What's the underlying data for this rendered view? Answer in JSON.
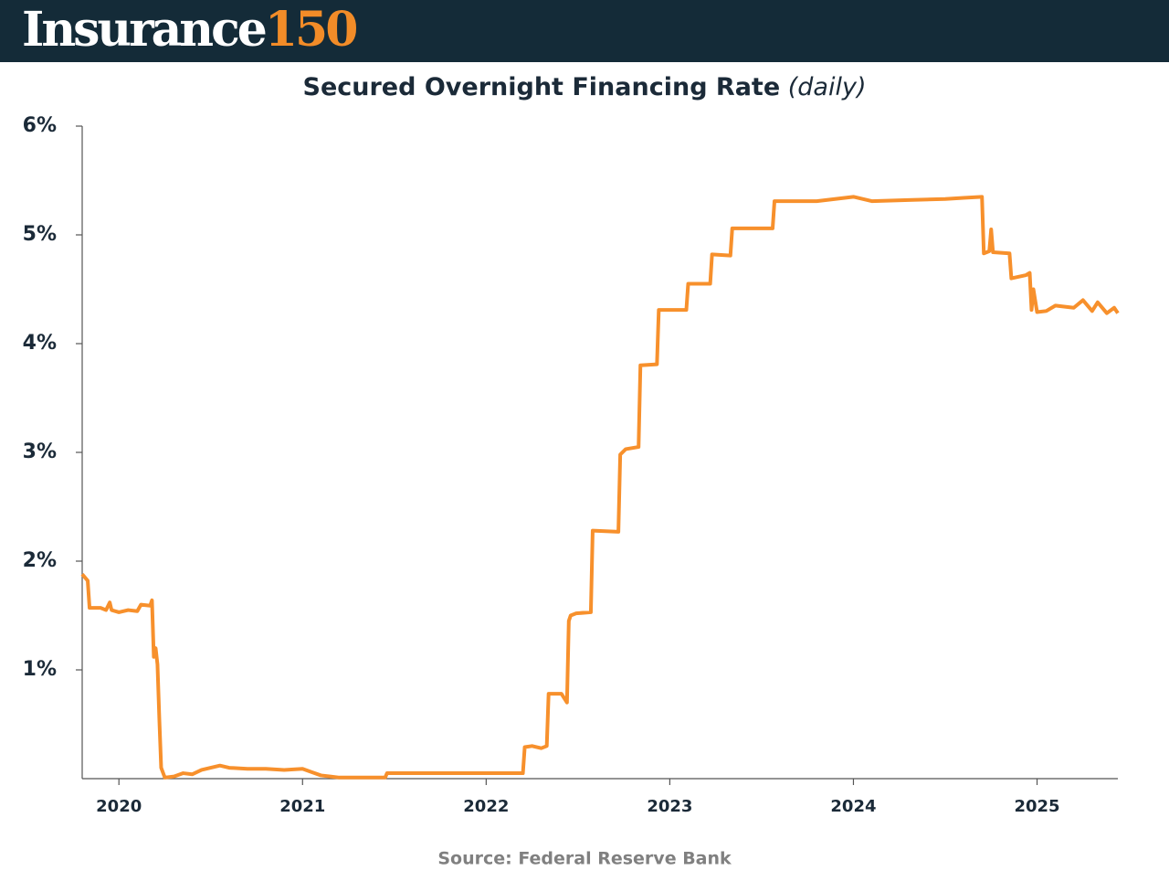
{
  "header": {
    "brand": "Insurance",
    "brand_number": "150"
  },
  "chart_data": {
    "type": "line",
    "title": "Secured Overnight Financing Rate",
    "subtitle": "(daily)",
    "source": "Source: Federal Reserve Bank",
    "color": "#f7902c",
    "xlim": [
      2019.8,
      2025.44
    ],
    "xticks": [
      2020,
      2021,
      2022,
      2023,
      2024,
      2025
    ],
    "ylim": [
      0,
      6
    ],
    "yticks": [
      {
        "value": 1,
        "label": "1%"
      },
      {
        "value": 2,
        "label": "2%"
      },
      {
        "value": 3,
        "label": "3%"
      },
      {
        "value": 4,
        "label": "4%"
      },
      {
        "value": 5,
        "label": "5%"
      },
      {
        "value": 6,
        "label": "6%"
      }
    ],
    "x": [
      2019.8,
      2019.83,
      2019.84,
      2019.9,
      2019.93,
      2019.95,
      2019.96,
      2020.0,
      2020.05,
      2020.1,
      2020.12,
      2020.17,
      2020.18,
      2020.19,
      2020.2,
      2020.21,
      2020.22,
      2020.23,
      2020.25,
      2020.3,
      2020.35,
      2020.4,
      2020.45,
      2020.5,
      2020.55,
      2020.6,
      2020.7,
      2020.8,
      2020.9,
      2021.0,
      2021.05,
      2021.1,
      2021.15,
      2021.2,
      2021.3,
      2021.45,
      2021.46,
      2021.6,
      2021.8,
      2022.0,
      2022.2,
      2022.21,
      2022.25,
      2022.3,
      2022.33,
      2022.34,
      2022.41,
      2022.44,
      2022.45,
      2022.46,
      2022.49,
      2022.57,
      2022.58,
      2022.72,
      2022.73,
      2022.76,
      2022.83,
      2022.84,
      2022.93,
      2022.94,
      2023.09,
      2023.1,
      2023.22,
      2023.23,
      2023.33,
      2023.34,
      2023.56,
      2023.57,
      2023.8,
      2023.9,
      2024.0,
      2024.1,
      2024.3,
      2024.5,
      2024.6,
      2024.7,
      2024.71,
      2024.74,
      2024.75,
      2024.76,
      2024.85,
      2024.86,
      2024.94,
      2024.96,
      2024.97,
      2024.98,
      2025.0,
      2025.05,
      2025.1,
      2025.2,
      2025.25,
      2025.3,
      2025.33,
      2025.38,
      2025.42,
      2025.44
    ],
    "values": [
      1.88,
      1.82,
      1.57,
      1.57,
      1.55,
      1.62,
      1.55,
      1.53,
      1.55,
      1.54,
      1.6,
      1.59,
      1.64,
      1.12,
      1.2,
      1.05,
      0.55,
      0.1,
      0.01,
      0.02,
      0.05,
      0.04,
      0.08,
      0.1,
      0.12,
      0.1,
      0.09,
      0.09,
      0.08,
      0.09,
      0.06,
      0.03,
      0.02,
      0.01,
      0.01,
      0.01,
      0.05,
      0.05,
      0.05,
      0.05,
      0.05,
      0.29,
      0.3,
      0.28,
      0.3,
      0.78,
      0.78,
      0.7,
      1.45,
      1.5,
      1.52,
      1.53,
      2.28,
      2.27,
      2.98,
      3.03,
      3.05,
      3.8,
      3.81,
      4.31,
      4.31,
      4.55,
      4.55,
      4.82,
      4.81,
      5.06,
      5.06,
      5.31,
      5.31,
      5.33,
      5.35,
      5.31,
      5.32,
      5.33,
      5.34,
      5.35,
      4.83,
      4.85,
      5.05,
      4.84,
      4.83,
      4.6,
      4.63,
      4.65,
      4.31,
      4.5,
      4.29,
      4.3,
      4.35,
      4.33,
      4.4,
      4.3,
      4.38,
      4.28,
      4.33,
      4.28
    ]
  }
}
